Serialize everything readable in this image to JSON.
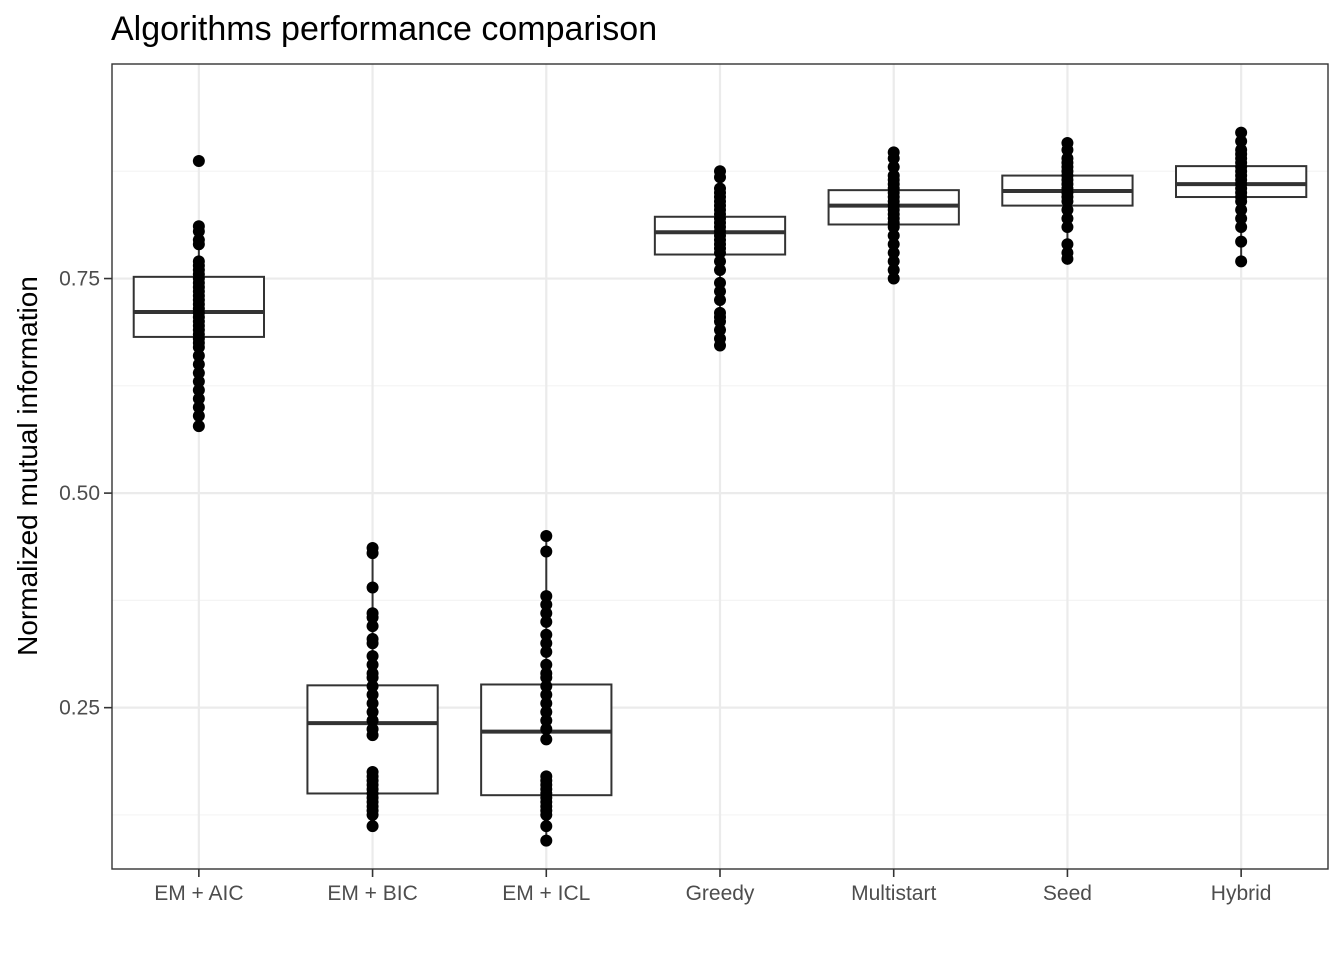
{
  "chart_data": {
    "type": "box",
    "title": "Algorithms performance comparison",
    "xlabel": "",
    "ylabel": "Normalized mutual information",
    "categories": [
      "EM + AIC",
      "EM + BIC",
      "EM + ICL",
      "Greedy",
      "Multistart",
      "Seed",
      "Hybrid"
    ],
    "y_ticks": [
      0.25,
      0.5,
      0.75
    ],
    "y_tick_labels": [
      "0.25",
      "0.50",
      "0.75"
    ],
    "ylim": [
      0.062,
      1.0
    ],
    "grid": true,
    "boxes": [
      {
        "category": "EM + AIC",
        "q1": 0.682,
        "median": 0.711,
        "q3": 0.752,
        "whisker_low": 0.578,
        "whisker_high": 0.811,
        "points": [
          0.578,
          0.59,
          0.6,
          0.61,
          0.62,
          0.63,
          0.64,
          0.65,
          0.66,
          0.67,
          0.675,
          0.68,
          0.685,
          0.69,
          0.695,
          0.7,
          0.705,
          0.71,
          0.715,
          0.72,
          0.725,
          0.73,
          0.735,
          0.74,
          0.745,
          0.75,
          0.755,
          0.76,
          0.765,
          0.77,
          0.79,
          0.795,
          0.805,
          0.811,
          0.887
        ]
      },
      {
        "category": "EM + BIC",
        "q1": 0.15,
        "median": 0.232,
        "q3": 0.276,
        "whisker_low": 0.112,
        "whisker_high": 0.436,
        "points": [
          0.112,
          0.125,
          0.13,
          0.135,
          0.14,
          0.145,
          0.15,
          0.155,
          0.16,
          0.165,
          0.17,
          0.175,
          0.218,
          0.225,
          0.235,
          0.245,
          0.255,
          0.265,
          0.275,
          0.285,
          0.29,
          0.3,
          0.31,
          0.325,
          0.33,
          0.345,
          0.355,
          0.36,
          0.39,
          0.43,
          0.436
        ]
      },
      {
        "category": "EM + ICL",
        "q1": 0.148,
        "median": 0.222,
        "q3": 0.277,
        "whisker_low": 0.095,
        "whisker_high": 0.45,
        "points": [
          0.095,
          0.112,
          0.125,
          0.13,
          0.135,
          0.14,
          0.145,
          0.15,
          0.155,
          0.16,
          0.165,
          0.17,
          0.213,
          0.225,
          0.235,
          0.245,
          0.255,
          0.265,
          0.275,
          0.285,
          0.29,
          0.3,
          0.315,
          0.325,
          0.335,
          0.35,
          0.36,
          0.37,
          0.38,
          0.432,
          0.45
        ]
      },
      {
        "category": "Greedy",
        "q1": 0.778,
        "median": 0.804,
        "q3": 0.822,
        "whisker_low": 0.672,
        "whisker_high": 0.875,
        "points": [
          0.672,
          0.68,
          0.69,
          0.7,
          0.705,
          0.71,
          0.725,
          0.735,
          0.745,
          0.76,
          0.77,
          0.78,
          0.785,
          0.79,
          0.795,
          0.8,
          0.805,
          0.81,
          0.815,
          0.82,
          0.825,
          0.83,
          0.835,
          0.84,
          0.845,
          0.85,
          0.855,
          0.868,
          0.875
        ]
      },
      {
        "category": "Multistart",
        "q1": 0.813,
        "median": 0.835,
        "q3": 0.853,
        "whisker_low": 0.75,
        "whisker_high": 0.897,
        "points": [
          0.75,
          0.76,
          0.77,
          0.78,
          0.79,
          0.8,
          0.81,
          0.815,
          0.82,
          0.825,
          0.83,
          0.835,
          0.84,
          0.845,
          0.85,
          0.855,
          0.86,
          0.865,
          0.87,
          0.88,
          0.89,
          0.897
        ]
      },
      {
        "category": "Seed",
        "q1": 0.835,
        "median": 0.852,
        "q3": 0.87,
        "whisker_low": 0.773,
        "whisker_high": 0.908,
        "points": [
          0.773,
          0.78,
          0.79,
          0.81,
          0.82,
          0.83,
          0.84,
          0.845,
          0.85,
          0.855,
          0.86,
          0.865,
          0.87,
          0.875,
          0.88,
          0.885,
          0.89,
          0.9,
          0.908
        ]
      },
      {
        "category": "Hybrid",
        "q1": 0.845,
        "median": 0.86,
        "q3": 0.881,
        "whisker_low": 0.77,
        "whisker_high": 0.92,
        "points": [
          0.77,
          0.793,
          0.81,
          0.82,
          0.83,
          0.84,
          0.845,
          0.85,
          0.855,
          0.86,
          0.865,
          0.87,
          0.875,
          0.88,
          0.885,
          0.89,
          0.895,
          0.9,
          0.91,
          0.92
        ]
      }
    ],
    "colors": {
      "box_stroke": "#333333",
      "point": "#000000",
      "grid_major": "#ebebeb",
      "grid_minor": "#f4f4f4",
      "panel_border": "#333333",
      "tick_text": "#4d4d4d"
    }
  }
}
